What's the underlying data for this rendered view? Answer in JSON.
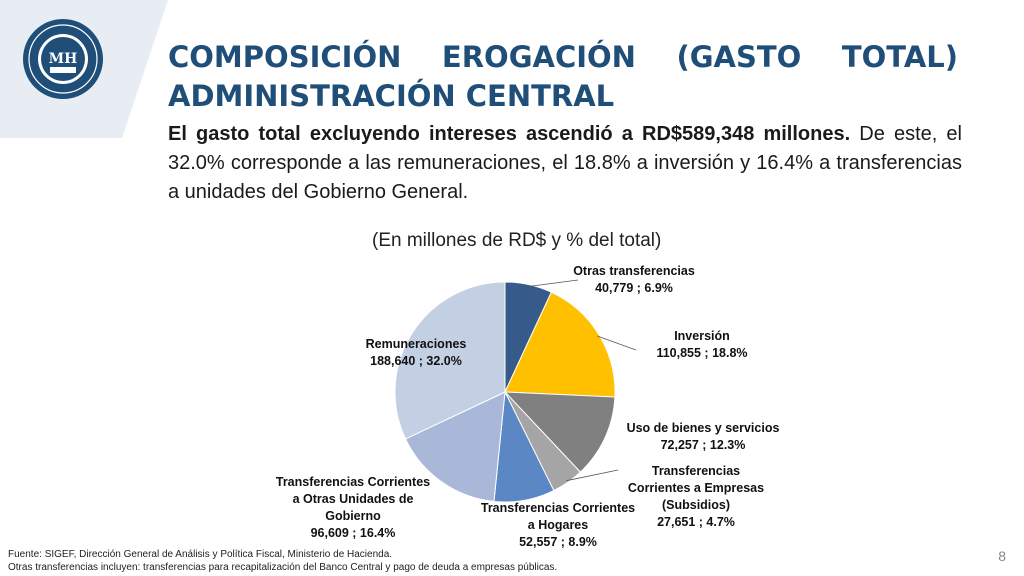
{
  "slide": {
    "title_line1": "COMPOSICIÓN EROGACIÓN (GASTO TOTAL)",
    "title_line2": "ADMINISTRACIÓN CENTRAL",
    "intro_bold": "El gasto total excluyendo intereses ascendió a RD$589,348 millones.",
    "intro_rest": " De este, el 32.0% corresponde a las remuneraciones, el 18.8% a inversión y 16.4% a transferencias a unidades del Gobierno General.",
    "page_number": "8"
  },
  "logo": {
    "text": "MH",
    "ring_text_top": "MINISTERIO DE HACIENDA",
    "ring_text_bottom": "REPÚBLICA DOMINICANA"
  },
  "chart_data": {
    "type": "pie",
    "title": "(En millones de RD$ y % del total)",
    "slices": [
      {
        "name": "Otras transferencias",
        "value": 40779,
        "label": "40,779 ; 6.9%",
        "percent": 6.9,
        "color": "#365b8a"
      },
      {
        "name": "Inversión",
        "value": 110855,
        "label": "110,855 ; 18.8%",
        "percent": 18.8,
        "color": "#ffc000"
      },
      {
        "name": "Uso de bienes y servicios",
        "value": 72257,
        "label": "72,257 ; 12.3%",
        "percent": 12.3,
        "color": "#808080"
      },
      {
        "name": "Transferencias Corrientes a Empresas (Subsidios)",
        "value": 27651,
        "label": "27,651 ; 4.7%",
        "percent": 4.7,
        "color": "#a5a5a5"
      },
      {
        "name": "Transferencias Corrientes a Hogares",
        "value": 52557,
        "label": "52,557 ; 8.9%",
        "percent": 8.9,
        "color": "#5b87c5"
      },
      {
        "name": "Transferencias Corrientes a Otras Unidades de Gobierno",
        "value": 96609,
        "label": "96,609 ; 16.4%",
        "percent": 16.4,
        "color": "#a9b8d8"
      },
      {
        "name": "Remuneraciones",
        "value": 188640,
        "label": "188,640 ; 32.0%",
        "percent": 32.0,
        "color": "#c3cfe3"
      }
    ]
  },
  "footer": {
    "source": "Fuente: SIGEF, Dirección General de Análisis y Política Fiscal, Ministerio de Hacienda.",
    "note": "Otras transferencias incluyen: transferencias para recapitalización del Banco Central y pago de deuda a empresas públicas."
  }
}
